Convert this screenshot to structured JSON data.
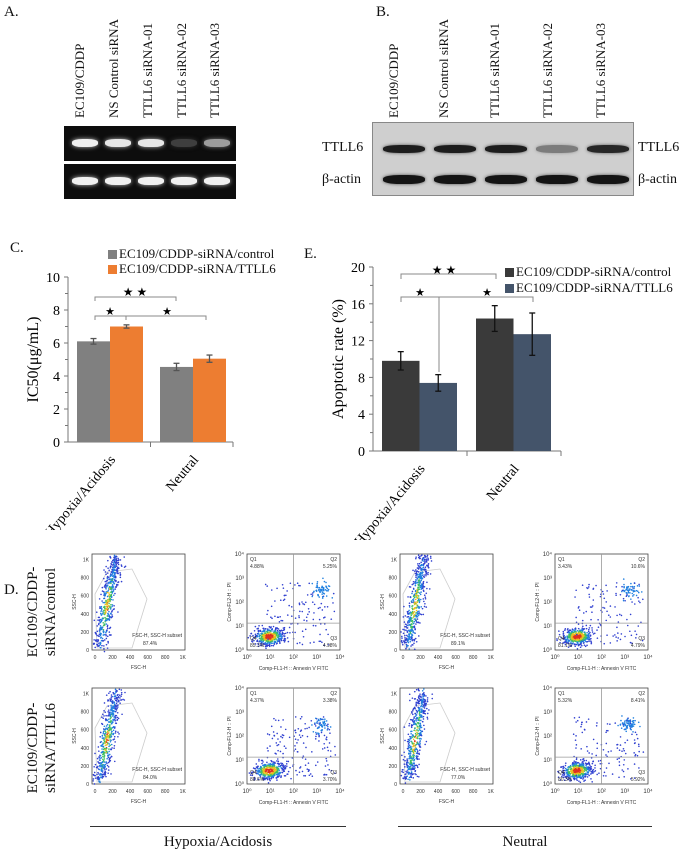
{
  "panel_a": {
    "label": "A.",
    "lanes": [
      "EC109/CDDP",
      "NS Control siRNA",
      "TTLL6 siRNA-01",
      "TTLL6 siRNA-02",
      "TTLL6 siRNA-03"
    ],
    "rows": [
      {
        "band_intensity": [
          1.0,
          0.95,
          0.95,
          0.15,
          0.6
        ]
      },
      {
        "band_intensity": [
          1.0,
          1.0,
          1.0,
          1.0,
          1.0
        ]
      }
    ]
  },
  "panel_b": {
    "label": "B.",
    "lanes": [
      "EC109/CDDP",
      "NS Control siRNA",
      "TTLL6 siRNA-01",
      "TTLL6 siRNA-02",
      "TTLL6 siRNA-03"
    ],
    "rows": [
      {
        "name": "TTLL6",
        "band_intensity": [
          0.9,
          0.9,
          0.9,
          0.4,
          0.85
        ]
      },
      {
        "name": "β-actin",
        "band_intensity": [
          0.95,
          0.95,
          0.95,
          0.95,
          0.95
        ]
      }
    ]
  },
  "chart_data": [
    {
      "panel": "C.",
      "type": "bar",
      "categories": [
        "Hypoxia/Acidosis",
        "Neutral"
      ],
      "series": [
        {
          "name": "EC109/CDDP-siRNA/control",
          "values": [
            6.1,
            4.55
          ],
          "errors": [
            0.17,
            0.22
          ],
          "color": "#808080"
        },
        {
          "name": "EC109/CDDP-siRNA/TTLL6",
          "values": [
            7.0,
            5.05
          ],
          "errors": [
            0.1,
            0.22
          ],
          "color": "#ed7d31"
        }
      ],
      "ylabel": "IC50(μg/mL)",
      "ylim": [
        0,
        10
      ],
      "yticks": [
        "0",
        "2",
        "4",
        "6",
        "8",
        "10"
      ],
      "legend": "top",
      "significance": [
        {
          "mark": "★ ★"
        },
        {
          "mark": "★"
        },
        {
          "mark": "★"
        }
      ]
    },
    {
      "panel": "E.",
      "type": "bar",
      "categories": [
        "Hypoxia/Acidosis",
        "Neutral"
      ],
      "series": [
        {
          "name": "EC109/CDDP-siRNA/control",
          "values": [
            9.8,
            14.4
          ],
          "errors": [
            1.0,
            1.4
          ],
          "color": "#3a3a3a"
        },
        {
          "name": "EC109/CDDP-siRNA/TTLL6",
          "values": [
            7.4,
            12.7
          ],
          "errors": [
            0.9,
            2.3
          ],
          "color": "#44546a"
        }
      ],
      "ylabel": "Apoptotic rate (%)",
      "ylim": [
        0,
        20
      ],
      "yticks": [
        "0",
        "4",
        "8",
        "12",
        "16",
        "20"
      ],
      "legend": "top-right",
      "significance": [
        {
          "mark": "★ ★"
        },
        {
          "mark": "★"
        },
        {
          "mark": "★"
        }
      ]
    }
  ],
  "panel_d": {
    "label": "D.",
    "row_labels": [
      [
        "EC109/CDDP-",
        "siRNA/control"
      ],
      [
        "EC109/CDDP-",
        "siRNA/TTLL6"
      ]
    ],
    "group_labels": [
      "Hypoxia/Acidosis",
      "Neutral"
    ],
    "scatter_axes": {
      "xlabel": "FSC-H",
      "ylabel": "SSC-H",
      "ticks": [
        "0",
        "200",
        "400",
        "600",
        "800",
        "1K"
      ],
      "gate_name": "FSC-H, SSC-H subset"
    },
    "quadrant_axes": {
      "xlabel": "Comp-FL1-H :: Annexin V FITC",
      "ylabel": "Comp-FL2-H :: PI",
      "ticks": [
        "10⁰",
        "10¹",
        "10²",
        "10³",
        "10⁴"
      ],
      "quadrant_names": [
        "Q1",
        "Q2",
        "Q3",
        "Q4"
      ]
    },
    "plots": [
      {
        "gate_pct": "87.4%",
        "Q1": "4.88%",
        "Q2": "5.25%",
        "Q3": "4.98%",
        "Q4": "85.3%"
      },
      {
        "gate_pct": "89.1%",
        "Q1": "3.43%",
        "Q2": "10.6%",
        "Q3": "4.79%",
        "Q4": "81.1%"
      },
      {
        "gate_pct": "84.0%",
        "Q1": "4.37%",
        "Q2": "3.38%",
        "Q3": "3.70%",
        "Q4": "88.6%"
      },
      {
        "gate_pct": "77.0%",
        "Q1": "5.32%",
        "Q2": "8.41%",
        "Q3": "5.92%",
        "Q4": "80.3%"
      }
    ]
  }
}
